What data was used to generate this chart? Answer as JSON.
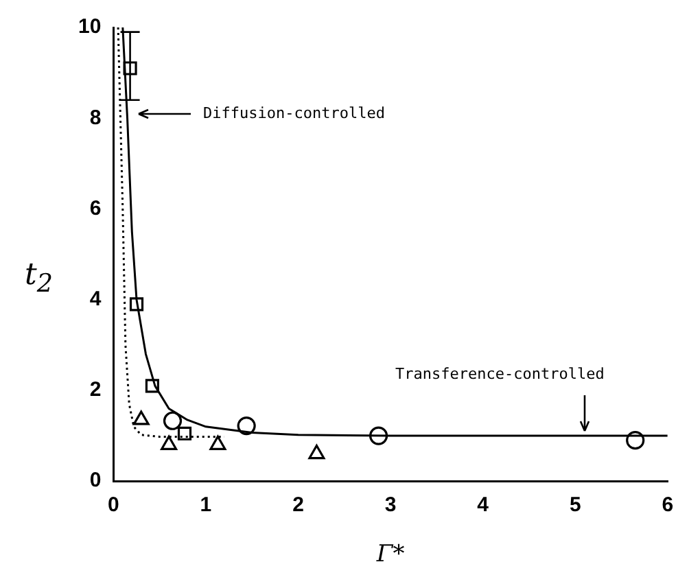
{
  "chart_data": {
    "type": "scatter",
    "xlabel": "Γ*",
    "ylabel": "t$_{2}$",
    "xlim": [
      0,
      6
    ],
    "ylim": [
      0,
      10
    ],
    "xticks": [
      0,
      1,
      2,
      3,
      4,
      5,
      6
    ],
    "yticks": [
      0,
      2,
      4,
      6,
      8,
      10
    ],
    "grid": false,
    "legend": false,
    "series": [
      {
        "type": "scatter",
        "marker": "square",
        "color": "#000000",
        "x": [
          0.18,
          0.25,
          0.42,
          0.77
        ],
        "values": [
          9.1,
          3.9,
          2.1,
          1.05
        ],
        "errors": [
          [
            8.4,
            9.9
          ],
          null,
          null,
          null
        ]
      },
      {
        "type": "scatter",
        "marker": "circle",
        "color": "#000000",
        "x": [
          0.64,
          1.44,
          2.87,
          5.65
        ],
        "values": [
          1.33,
          1.22,
          1.0,
          0.9
        ]
      },
      {
        "type": "scatter",
        "marker": "triangle",
        "color": "#000000",
        "x": [
          0.3,
          0.6,
          1.13,
          2.2
        ],
        "values": [
          1.35,
          0.8,
          0.8,
          0.6
        ]
      },
      {
        "type": "line",
        "line_style": "solid",
        "marker": "none",
        "color": "#000000",
        "x": [
          0.1,
          0.15,
          0.2,
          0.25,
          0.35,
          0.45,
          0.6,
          0.8,
          1.0,
          1.5,
          2,
          3,
          6
        ],
        "values": [
          10,
          8,
          5.5,
          4,
          2.8,
          2.1,
          1.6,
          1.35,
          1.2,
          1.07,
          1.02,
          1.0,
          1.0
        ]
      },
      {
        "type": "line",
        "line_style": "dotted",
        "marker": "none",
        "color": "#000000",
        "x": [
          0.05,
          0.1,
          0.13,
          0.17,
          0.22,
          0.3,
          0.5,
          1.2
        ],
        "values": [
          10,
          6,
          3,
          1.7,
          1.2,
          1.02,
          0.98,
          0.98
        ]
      }
    ],
    "annotations": [
      "Diffusion-controlled",
      "Transference-controlled"
    ]
  }
}
